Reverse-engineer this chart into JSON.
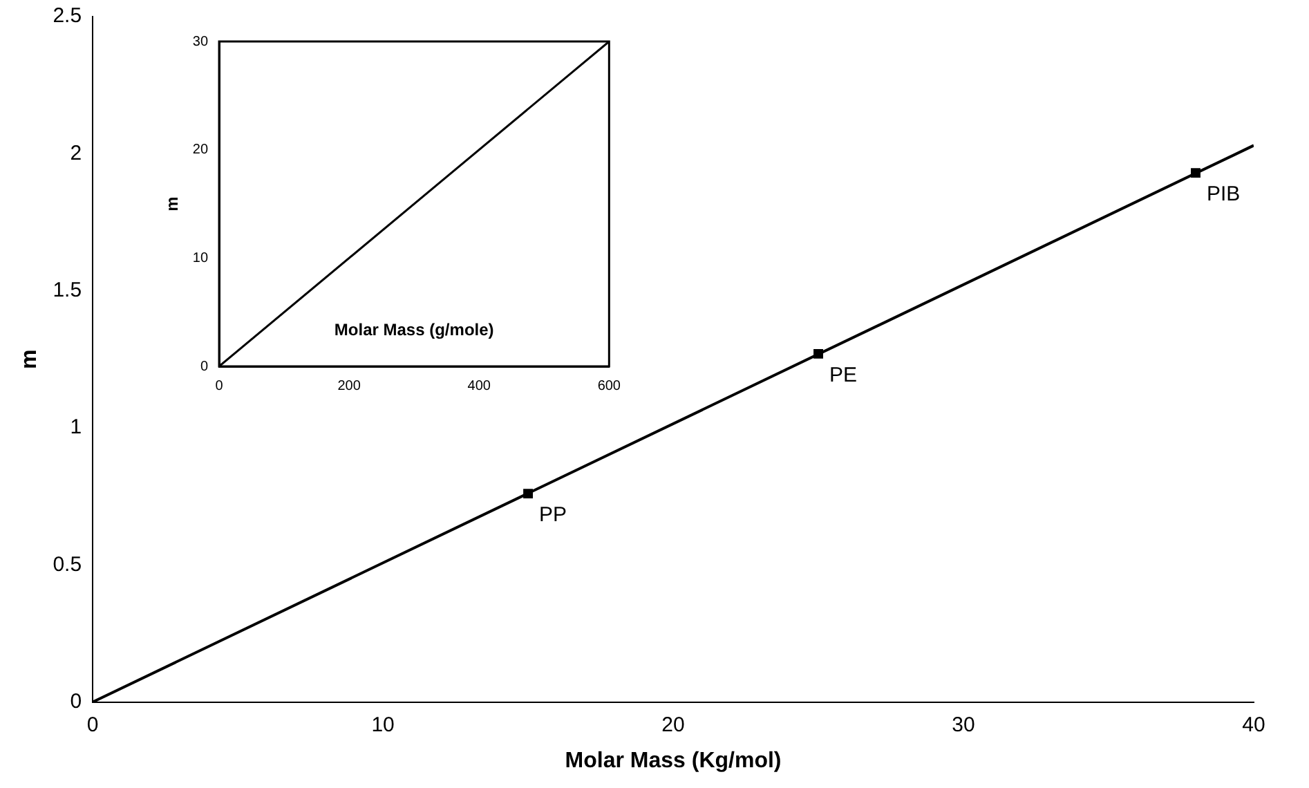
{
  "chart_data": [
    {
      "type": "line",
      "xlabel": "Molar Mass (Kg/mol)",
      "ylabel": "m",
      "xlim": [
        0,
        40
      ],
      "xticks": [
        0,
        10,
        20,
        30,
        40
      ],
      "ylim": [
        0,
        2.5
      ],
      "yticks": [
        0,
        0.5,
        1,
        1.5,
        2,
        2.5
      ],
      "grid": false,
      "legend": false,
      "series": [
        {
          "x": [
            0,
            40
          ],
          "values": [
            0,
            2.03
          ],
          "color": "#000000",
          "marker": "none"
        },
        {
          "type": "scatter",
          "x": [
            15,
            25,
            38
          ],
          "values": [
            0.76,
            1.27,
            1.93
          ],
          "color": "#000000",
          "marker": "square"
        }
      ],
      "annotations": [
        {
          "text": "PP",
          "x": 15,
          "y": 0.76
        },
        {
          "text": "PE",
          "x": 25,
          "y": 1.27
        },
        {
          "text": "PIB",
          "x": 38,
          "y": 1.93
        }
      ]
    },
    {
      "type": "line",
      "xlabel": "Molar Mass (g/mole)",
      "ylabel": "m",
      "xlim": [
        0,
        600
      ],
      "xticks": [
        0,
        200,
        400,
        600
      ],
      "ylim": [
        0,
        30
      ],
      "yticks": [
        0,
        10,
        20,
        30
      ],
      "grid": false,
      "legend": false,
      "series": [
        {
          "x": [
            0,
            600
          ],
          "values": [
            0,
            30
          ],
          "color": "#000000",
          "marker": "none"
        }
      ]
    }
  ]
}
